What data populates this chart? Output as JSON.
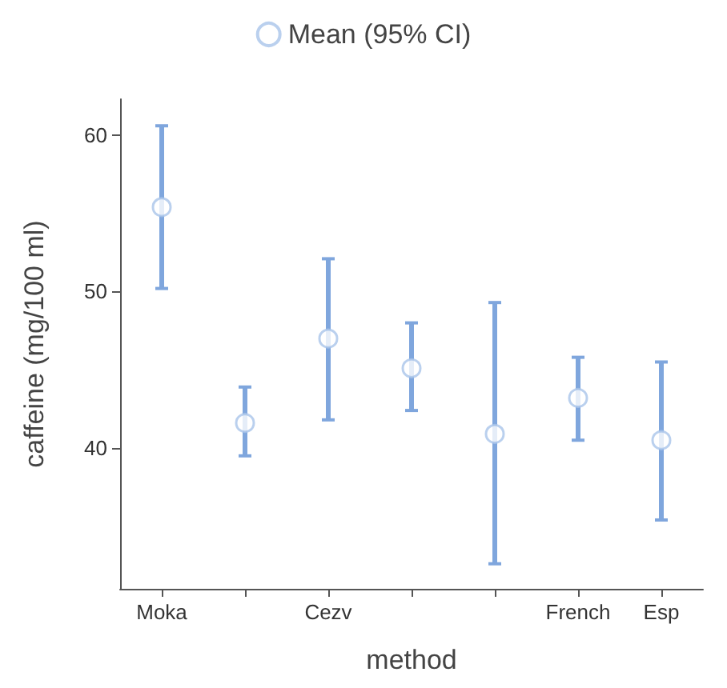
{
  "chart_data": {
    "type": "scatter",
    "xlabel": "method",
    "ylabel": "caffeine (mg/100 ml)",
    "categories": [
      "Moka",
      null,
      "Cezv",
      null,
      null,
      "French",
      "Esp"
    ],
    "series": [
      {
        "name": "Mean (95% CI)",
        "color": "#a9c4ea",
        "values": [
          55.4,
          41.6,
          47.0,
          45.1,
          40.9,
          43.2,
          40.5
        ],
        "errors": [
          [
            50.2,
            60.6
          ],
          [
            39.5,
            43.9
          ],
          [
            41.8,
            52.1
          ],
          [
            42.4,
            48.0
          ],
          [
            32.6,
            49.3
          ],
          [
            40.5,
            45.8
          ],
          [
            35.4,
            45.5
          ]
        ]
      }
    ],
    "ylim": [
      31,
      62.3
    ],
    "yticks": [
      40,
      50,
      60
    ],
    "grid": false,
    "legend": "top",
    "marker": "circle"
  }
}
